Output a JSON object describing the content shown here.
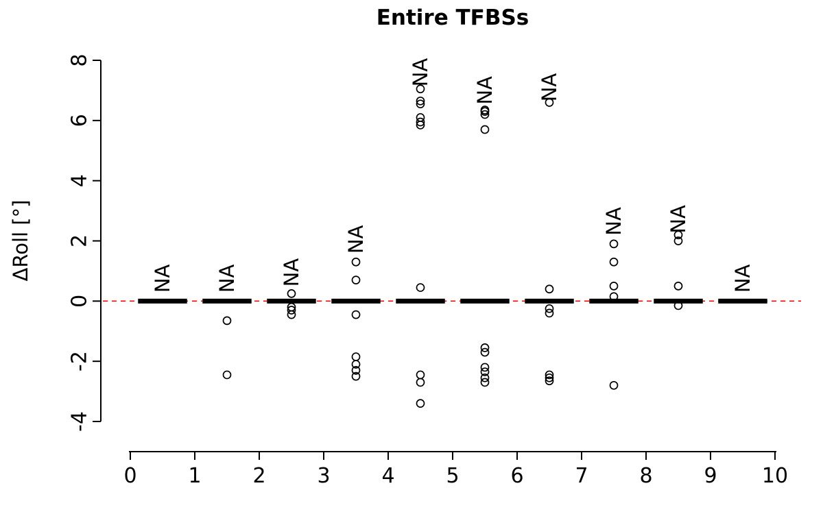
{
  "title": "Entire TFBSs",
  "ylabel": "ΔRoll [°]",
  "chart_data": {
    "type": "boxplot",
    "title": "Entire TFBSs",
    "xlabel": "",
    "ylabel": "ΔRoll [°]",
    "xlim": [
      0,
      10
    ],
    "ylim": [
      -4,
      8
    ],
    "x_ticks": [
      0,
      1,
      2,
      3,
      4,
      5,
      6,
      7,
      8,
      9,
      10
    ],
    "y_ticks": [
      -4,
      -2,
      0,
      2,
      4,
      6,
      8
    ],
    "grid": false,
    "reference_line": {
      "y": 0,
      "color": "#ff0000",
      "style": "dashed"
    },
    "box_color": "#000000",
    "box_width": 0.76,
    "groups": [
      {
        "x": 0.5,
        "label": "NA",
        "label_y": 0.75,
        "median": 0,
        "box": [
          0,
          0
        ],
        "whiskers": [
          0,
          0
        ],
        "outliers": []
      },
      {
        "x": 1.5,
        "label": "NA",
        "label_y": 0.75,
        "median": 0,
        "box": [
          0,
          0
        ],
        "whiskers": [
          0,
          0
        ],
        "outliers": [
          -0.65,
          -2.45
        ]
      },
      {
        "x": 2.5,
        "label": "NA",
        "label_y": 0.95,
        "median": 0,
        "box": [
          0,
          0
        ],
        "whiskers": [
          0,
          0
        ],
        "outliers": [
          0.25,
          -0.2,
          -0.3,
          -0.45
        ]
      },
      {
        "x": 3.5,
        "label": "NA",
        "label_y": 2.05,
        "median": 0,
        "box": [
          0,
          0
        ],
        "whiskers": [
          0,
          0
        ],
        "outliers": [
          1.3,
          0.7,
          -0.45,
          -1.85,
          -2.1,
          -2.3,
          -2.5
        ]
      },
      {
        "x": 4.5,
        "label": "NA",
        "label_y": 7.6,
        "median": 0,
        "box": [
          0,
          0
        ],
        "whiskers": [
          0,
          0
        ],
        "outliers": [
          7.05,
          6.65,
          6.55,
          6.1,
          5.95,
          5.85,
          0.45,
          -2.45,
          -2.7,
          -3.4
        ]
      },
      {
        "x": 5.5,
        "label": "NA",
        "label_y": 7.0,
        "median": 0,
        "box": [
          0,
          0
        ],
        "whiskers": [
          0,
          0
        ],
        "outliers": [
          6.35,
          6.3,
          6.2,
          5.7,
          -1.55,
          -1.7,
          -2.2,
          -2.35,
          -2.55,
          -2.7
        ]
      },
      {
        "x": 6.5,
        "label": "NA",
        "label_y": 7.1,
        "median": 0,
        "box": [
          0,
          0
        ],
        "whiskers": [
          0,
          0
        ],
        "outliers": [
          6.6,
          0.4,
          -0.25,
          -0.4,
          -2.45,
          -2.55,
          -2.65
        ]
      },
      {
        "x": 7.5,
        "label": "NA",
        "label_y": 2.65,
        "median": 0,
        "box": [
          0,
          0
        ],
        "whiskers": [
          0,
          0
        ],
        "outliers": [
          1.9,
          1.3,
          0.5,
          0.15,
          -2.8
        ]
      },
      {
        "x": 8.5,
        "label": "NA",
        "label_y": 2.72,
        "median": 0,
        "box": [
          0,
          0
        ],
        "whiskers": [
          0,
          0
        ],
        "outliers": [
          2.2,
          2.0,
          0.5,
          -0.15
        ]
      },
      {
        "x": 9.5,
        "label": "NA",
        "label_y": 0.75,
        "median": 0,
        "box": [
          0,
          0
        ],
        "whiskers": [
          0,
          0
        ],
        "outliers": []
      }
    ]
  }
}
